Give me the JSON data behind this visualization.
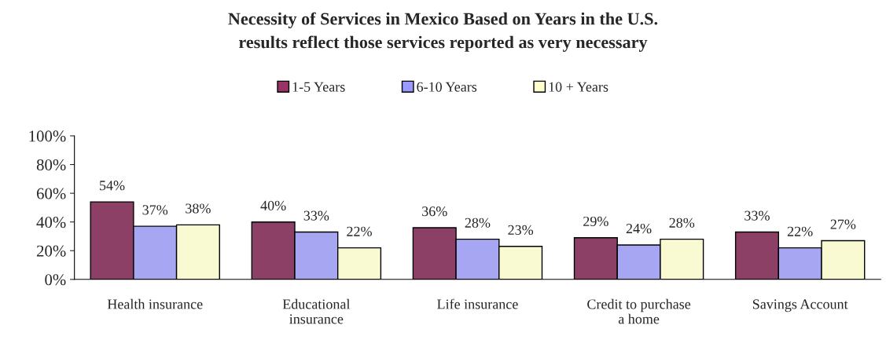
{
  "chart_data": {
    "type": "bar",
    "title": "Necessity of Services in Mexico Based on Years in the U.S.\nresults reflect those services reported as very necessary",
    "categories": [
      "Health insurance",
      "Educational\ninsurance",
      "Life insurance",
      "Credit to purchase\na home",
      "Savings Account"
    ],
    "series": [
      {
        "name": "1-5 Years",
        "color": "#993366",
        "values": [
          54,
          40,
          36,
          29,
          33
        ]
      },
      {
        "name": "6-10 Years",
        "color": "#9999ff",
        "values": [
          37,
          33,
          28,
          24,
          22
        ]
      },
      {
        "name": "10 + Years",
        "color": "#ffffcc",
        "values": [
          38,
          22,
          23,
          28,
          27
        ]
      }
    ],
    "ylim": [
      0,
      100
    ],
    "yticks": [
      {
        "value": 0,
        "label": "0%"
      },
      {
        "value": 20,
        "label": "20%"
      },
      {
        "value": 40,
        "label": "40%"
      },
      {
        "value": 60,
        "label": "60%"
      },
      {
        "value": 80,
        "label": "80%"
      },
      {
        "value": 100,
        "label": "100%"
      }
    ],
    "value_labels": [
      [
        "54%",
        "40%",
        "36%",
        "29%",
        "33%"
      ],
      [
        "37%",
        "33%",
        "28%",
        "24%",
        "22%"
      ],
      [
        "38%",
        "22%",
        "23%",
        "28%",
        "27%"
      ]
    ],
    "grid": false,
    "legend": "top"
  }
}
